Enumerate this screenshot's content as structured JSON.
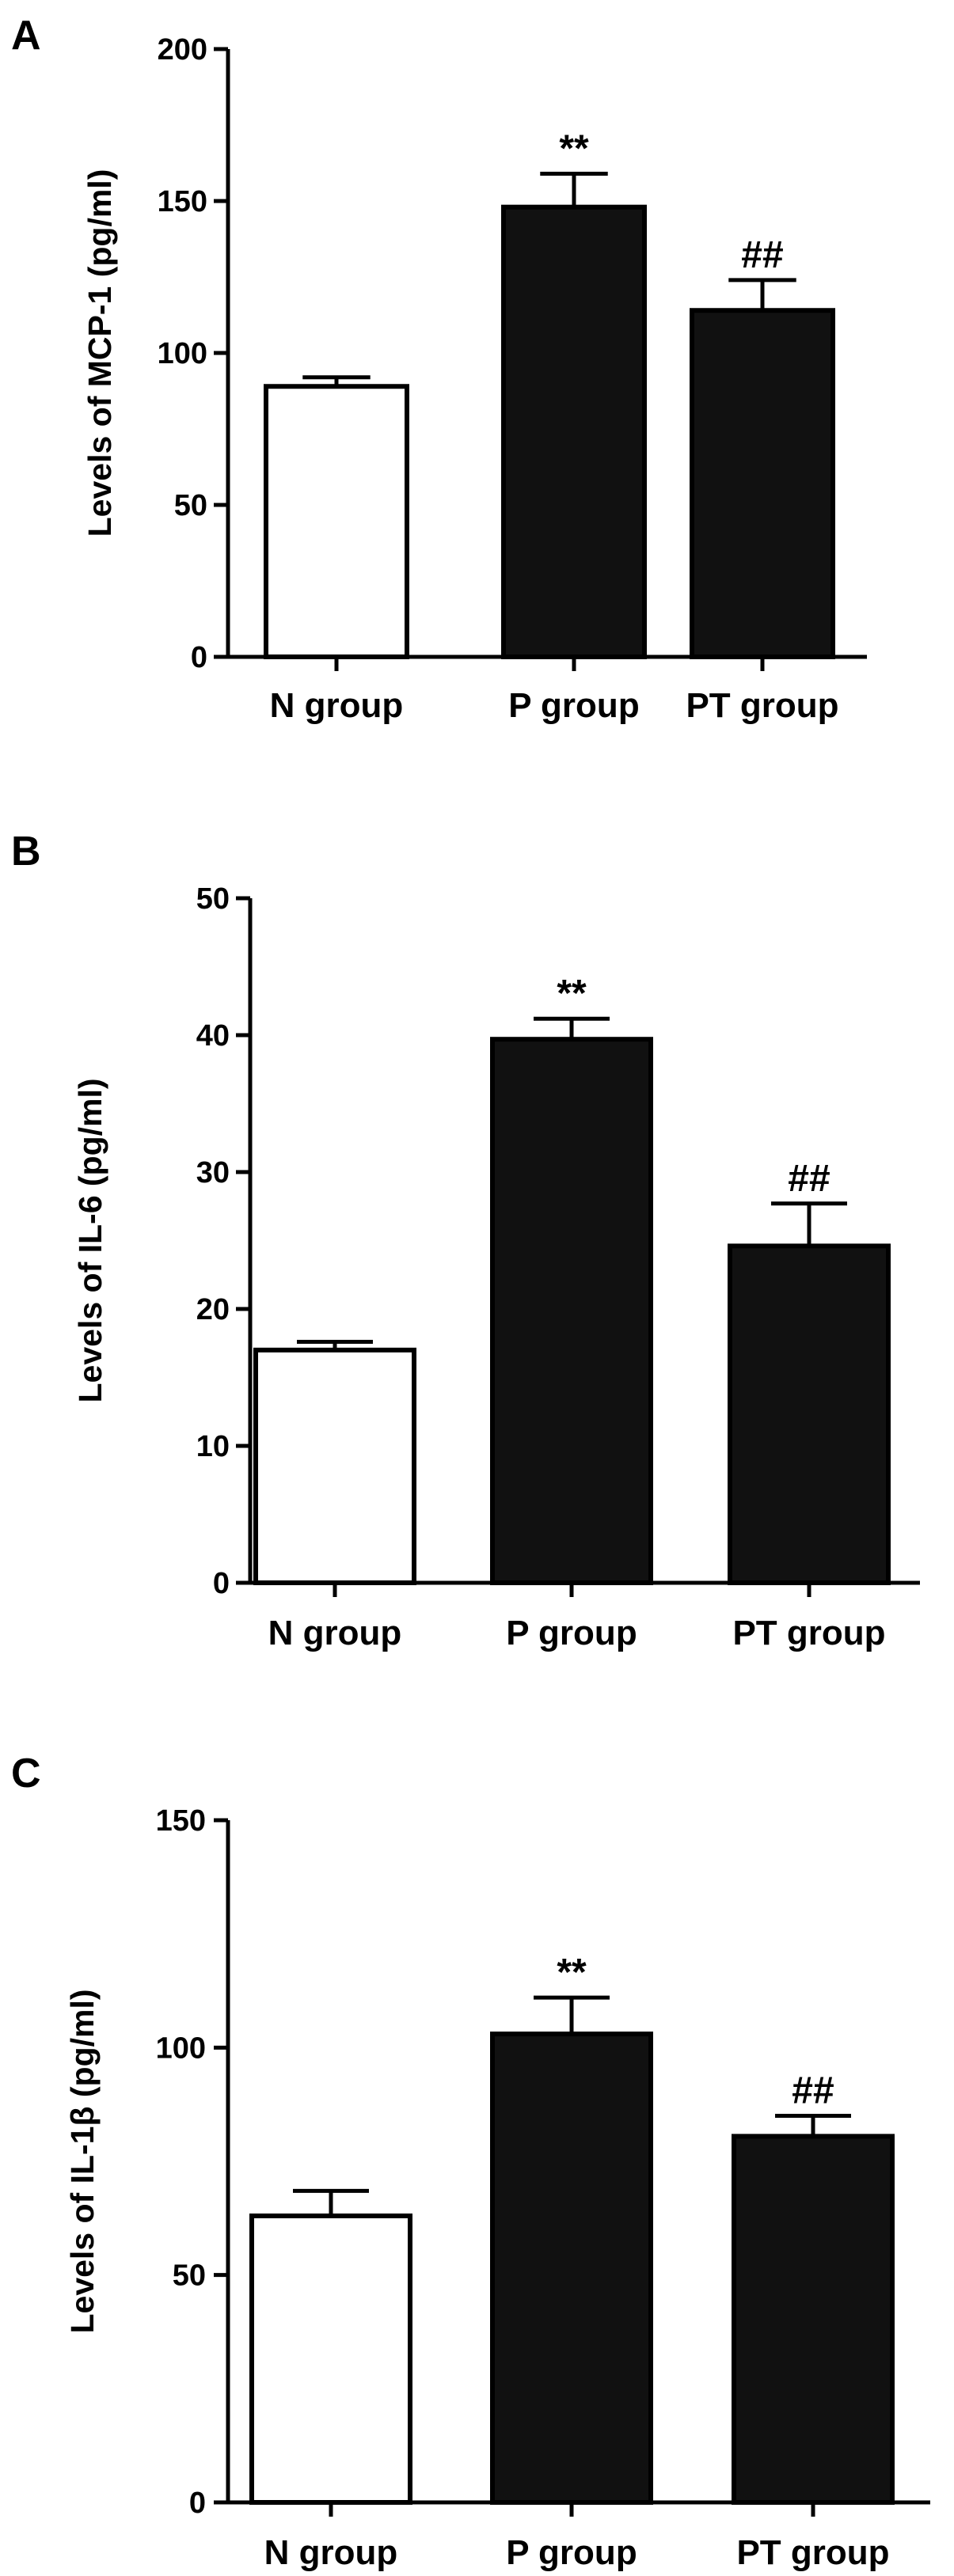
{
  "chart_data": [
    {
      "type": "bar",
      "panel": "A",
      "categories": [
        "N group",
        "P group",
        "PT group"
      ],
      "values": [
        89,
        148,
        114
      ],
      "errors": [
        3,
        11,
        10
      ],
      "fills": [
        "#ffffff",
        "#111111",
        "#111111"
      ],
      "annotations": [
        "",
        "**",
        "##"
      ],
      "title": "",
      "xlabel": "",
      "ylabel": "Levels of MCP-1 (pg/ml)",
      "ylim": [
        0,
        200
      ],
      "yticks": [
        0,
        50,
        100,
        150,
        200
      ],
      "grid": false
    },
    {
      "type": "bar",
      "panel": "B",
      "categories": [
        "N group",
        "P group",
        "PT group"
      ],
      "values": [
        17,
        39.7,
        24.6
      ],
      "errors": [
        0.6,
        1.5,
        3.1
      ],
      "fills": [
        "#ffffff",
        "#111111",
        "#111111"
      ],
      "annotations": [
        "",
        "**",
        "##"
      ],
      "title": "",
      "xlabel": "",
      "ylabel": "Levels of IL-6 (pg/ml)",
      "ylim": [
        0,
        50
      ],
      "yticks": [
        0,
        10,
        20,
        30,
        40,
        50
      ],
      "grid": false
    },
    {
      "type": "bar",
      "panel": "C",
      "categories": [
        "N group",
        "P group",
        "PT group"
      ],
      "values": [
        63,
        103,
        80.5
      ],
      "errors": [
        5.5,
        8,
        4.5
      ],
      "fills": [
        "#ffffff",
        "#111111",
        "#111111"
      ],
      "annotations": [
        "",
        "**",
        "##"
      ],
      "title": "",
      "xlabel": "",
      "ylabel": "Levels of IL-1β (pg/ml)",
      "ylim": [
        0,
        150
      ],
      "yticks": [
        0,
        50,
        100,
        150
      ],
      "grid": false
    }
  ]
}
